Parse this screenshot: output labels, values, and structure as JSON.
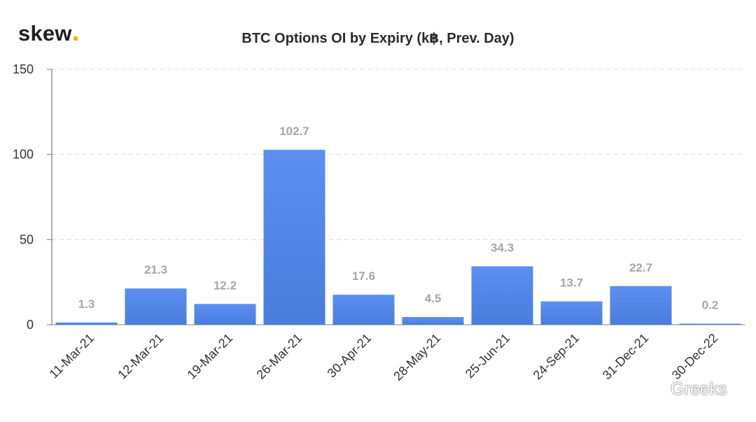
{
  "brand": {
    "logo_text": "skew",
    "accent_color": "#f0b21a"
  },
  "watermark": {
    "text": "Greeks",
    "icon": "wechat-icon"
  },
  "chart_data": {
    "type": "bar",
    "title": "BTC Options OI by Expiry (k฿, Prev. Day)",
    "xlabel": "",
    "ylabel": "",
    "categories": [
      "11-Mar-21",
      "12-Mar-21",
      "19-Mar-21",
      "26-Mar-21",
      "30-Apr-21",
      "28-May-21",
      "25-Jun-21",
      "24-Sep-21",
      "31-Dec-21",
      "30-Dec-22"
    ],
    "values": [
      1.3,
      21.3,
      12.2,
      102.7,
      17.6,
      4.5,
      34.3,
      13.7,
      22.7,
      0.2
    ],
    "data_labels": [
      "1.3",
      "21.3",
      "12.2",
      "102.7",
      "17.6",
      "4.5",
      "34.3",
      "13.7",
      "22.7",
      "0.2"
    ],
    "ylim": [
      0,
      150
    ],
    "yticks": [
      0,
      50,
      100,
      150
    ],
    "grid": true,
    "bar_color_top": "#5b8ff2",
    "bar_color_bottom": "#4a7cdb",
    "label_color": "#a6a6a6"
  }
}
